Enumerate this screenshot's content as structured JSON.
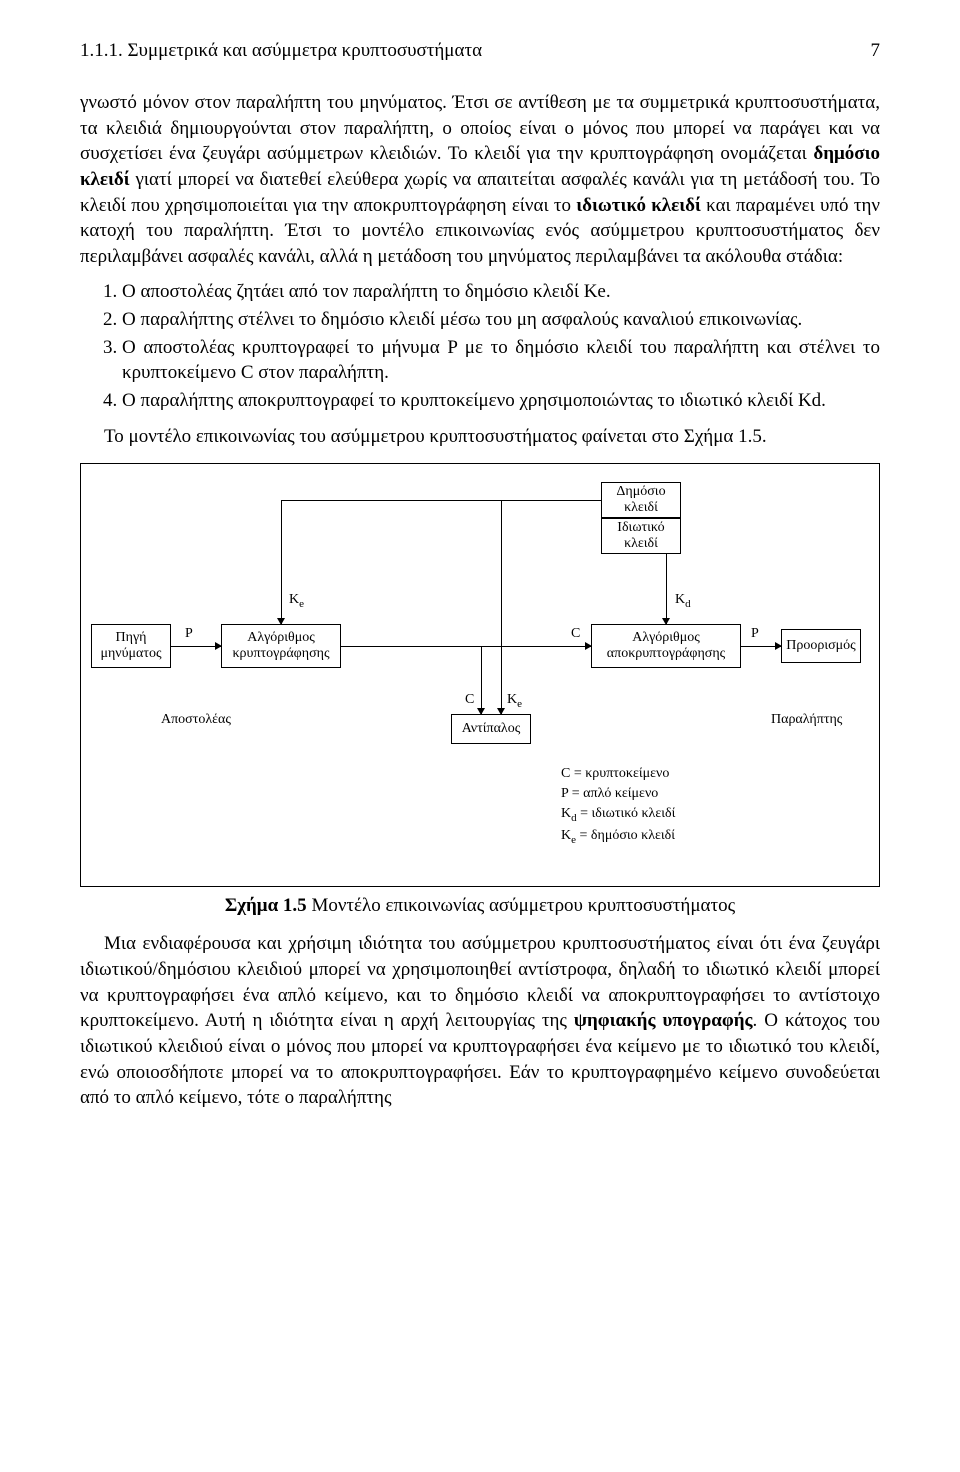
{
  "header": {
    "section": "1.1.1. Συμμετρικά και ασύμμετρα κρυπτοσυστήματα",
    "page_number": "7"
  },
  "para1": "γνωστό μόνον στον παραλήπτη του μηνύματος. Έτσι σε αντίθεση με τα συμμετρικά κρυπτοσυστήματα, τα κλειδιά δημιουργούνται στον παραλήπτη, ο οποίος είναι ο μόνος που μπορεί να παράγει και να συσχετίσει ένα ζευγάρι ασύμμετρων κλειδιών. Το κλειδί για την κρυπτογράφηση ονομάζεται ",
  "para1b": "δημόσιο κλειδί",
  "para1c": " γιατί μπορεί να διατεθεί ελεύθερα χωρίς να απαιτείται ασφαλές κανάλι για τη μετάδοσή του. Το κλειδί που χρησιμοποιείται για την αποκρυπτογράφηση είναι το ",
  "para1d": "ιδιωτικό κλειδί",
  "para1e": " και παραμένει υπό την κατοχή του παραλήπτη. Έτσι το μοντέλο επικοινωνίας ενός ασύμμετρου κρυπτοσυστήματος δεν περιλαμβάνει ασφαλές κανάλι, αλλά η μετάδοση του μηνύματος περιλαμβάνει τα ακόλουθα στάδια:",
  "list": [
    "Ο αποστολέας ζητάει από τον παραλήπτη το δημόσιο κλειδί Ke.",
    "Ο παραλήπτης στέλνει το δημόσιο κλειδί μέσω του μη ασφαλούς καναλιού επικοινωνίας.",
    "Ο αποστολέας κρυπτογραφεί το μήνυμα P με το δημόσιο κλειδί του παραλήπτη και στέλνει το κρυπτοκείμενο C στον παραλήπτη.",
    "Ο παραλήπτης αποκρυπτογραφεί το κρυπτοκείμενο χρησιμοποιώντας το ιδιωτικό κλειδί Kd."
  ],
  "para2": "Το μοντέλο επικοινωνίας του ασύμμετρου κρυπτοσυστήματος φαίνεται στο Σχήμα 1.5.",
  "diagram": {
    "type": "flowchart",
    "nodes": {
      "source": "Πηγή\nμηνύματος",
      "enc": "Αλγόριθμος\nκρυπτογράφησης",
      "dec": "Αλγόριθμος\nαποκρυπτογράφησης",
      "dest": "Προορισμός",
      "pub": "Δημόσιο\nκλειδί",
      "priv": "Ιδιωτικό\nκλειδί",
      "adv": "Αντίπαλος",
      "sender": "Αποστολέας",
      "receiver": "Παραλήπτης"
    },
    "edge_labels": {
      "P1": "P",
      "C": "C",
      "P2": "P",
      "Ke": "K",
      "Ke_sub": "e",
      "Kd": "K",
      "Kd_sub": "d",
      "C2": "C",
      "Ke2": "K",
      "Ke2_sub": "e"
    },
    "legend": {
      "l1": "C  = κρυπτοκείμενο",
      "l2": "P  = απλό κείμενο",
      "l3": "K",
      "l3sub": "d",
      "l3b": " = ιδιωτικό κλειδί",
      "l4": "K",
      "l4sub": "e",
      "l4b": " = δημόσιο κλειδί"
    }
  },
  "caption_bold": "Σχήμα 1.5",
  "caption_rest": " Μοντέλο επικοινωνίας ασύμμετρου κρυπτοσυστήματος",
  "para3a": "Μια ενδιαφέρουσα και χρήσιμη ιδιότητα του ασύμμετρου κρυπτοσυστήματος είναι ότι ένα ζευγάρι ιδιωτικού/δημόσιου κλειδιού μπορεί να χρησιμοποιηθεί αντίστροφα, δηλαδή το ιδιωτικό κλειδί μπορεί να κρυπτογραφήσει ένα απλό κείμενο, και το δημόσιο κλειδί να αποκρυπτογραφήσει το αντίστοιχο κρυπτοκείμενο. Αυτή η ιδιότητα είναι η αρχή λειτουργίας της ",
  "para3b": "ψηφιακής υπογραφής",
  "para3c": ". Ο κάτοχος του ιδιωτικού κλειδιού είναι ο μόνος που μπορεί να κρυπτογραφήσει ένα κείμενο με το ιδιωτικό του κλειδί, ενώ οποιοσδήποτε μπορεί να το αποκρυπτογραφήσει. Εάν το κρυπτογραφημένο κείμενο συνοδεύεται από το απλό κείμενο, τότε ο παραλήπτης"
}
